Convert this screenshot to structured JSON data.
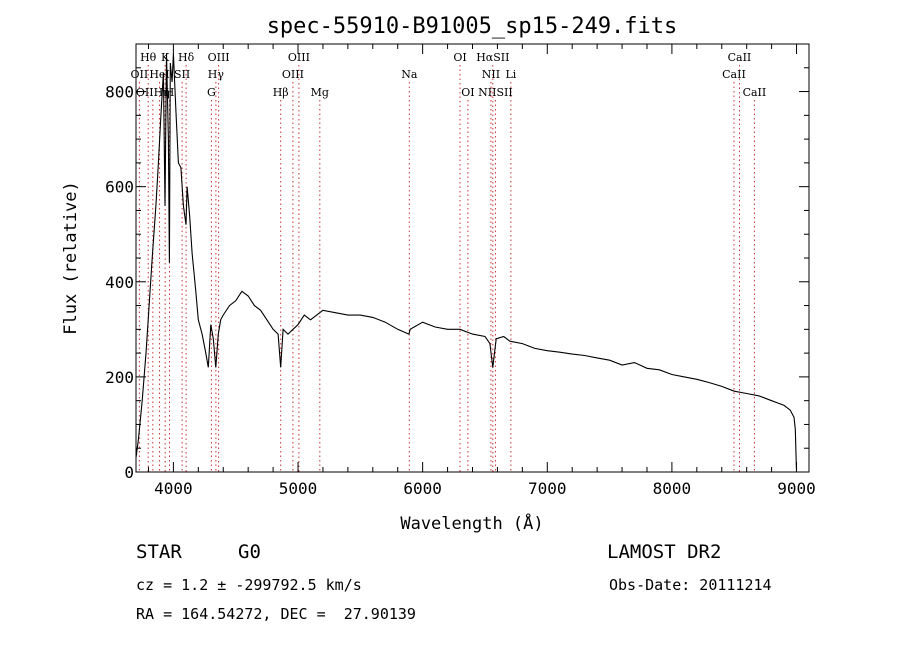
{
  "chart_data": {
    "type": "line",
    "title": "spec-55910-B91005_sp15-249.fits",
    "xlabel": "Wavelength (Å)",
    "ylabel": "Flux (relative)",
    "xlim": [
      3700,
      9100
    ],
    "ylim": [
      0,
      900
    ],
    "x_ticks": [
      4000,
      5000,
      6000,
      7000,
      8000,
      9000
    ],
    "y_ticks": [
      0,
      200,
      400,
      600,
      800
    ],
    "grid": false,
    "series": [
      {
        "color": "#000000",
        "x": [
          3700,
          3720,
          3750,
          3780,
          3800,
          3830,
          3860,
          3880,
          3900,
          3920,
          3933,
          3945,
          3960,
          3968,
          3975,
          3990,
          4000,
          4020,
          4040,
          4060,
          4080,
          4101,
          4110,
          4130,
          4150,
          4180,
          4200,
          4230,
          4260,
          4280,
          4300,
          4320,
          4340,
          4360,
          4380,
          4400,
          4450,
          4500,
          4550,
          4600,
          4650,
          4700,
          4750,
          4800,
          4840,
          4861,
          4880,
          4920,
          4960,
          5000,
          5050,
          5100,
          5150,
          5200,
          5300,
          5400,
          5500,
          5600,
          5700,
          5800,
          5890,
          5900,
          6000,
          6100,
          6200,
          6300,
          6400,
          6500,
          6540,
          6563,
          6590,
          6650,
          6700,
          6800,
          6900,
          7000,
          7100,
          7200,
          7300,
          7400,
          7500,
          7600,
          7700,
          7800,
          7900,
          8000,
          8100,
          8200,
          8300,
          8400,
          8500,
          8600,
          8700,
          8800,
          8850,
          8900,
          8950,
          8980,
          8990,
          9000
        ],
        "y": [
          30,
          70,
          150,
          250,
          330,
          450,
          560,
          650,
          750,
          840,
          560,
          880,
          700,
          440,
          860,
          820,
          880,
          760,
          650,
          640,
          560,
          520,
          600,
          540,
          460,
          380,
          320,
          290,
          250,
          220,
          310,
          280,
          220,
          290,
          320,
          330,
          350,
          360,
          380,
          370,
          350,
          340,
          320,
          300,
          290,
          220,
          300,
          290,
          300,
          310,
          330,
          320,
          330,
          340,
          335,
          330,
          330,
          325,
          315,
          300,
          290,
          300,
          315,
          305,
          300,
          300,
          290,
          285,
          270,
          220,
          280,
          285,
          275,
          270,
          260,
          255,
          252,
          248,
          245,
          240,
          235,
          225,
          230,
          218,
          215,
          205,
          200,
          195,
          188,
          180,
          170,
          165,
          160,
          150,
          145,
          140,
          130,
          115,
          90,
          0
        ]
      }
    ],
    "line_markers": [
      {
        "label": "Hθ",
        "x": 3798,
        "row": 1
      },
      {
        "label": "K",
        "x": 3934,
        "row": 1
      },
      {
        "label": "Hδ",
        "x": 4102,
        "row": 1
      },
      {
        "label": "OIII",
        "x": 4363,
        "row": 1
      },
      {
        "label": "OIII",
        "x": 5007,
        "row": 1
      },
      {
        "label": "OI",
        "x": 6300,
        "row": 1
      },
      {
        "label": "HαSII",
        "x": 6563,
        "row": 1
      },
      {
        "label": "CaII",
        "x": 8542,
        "row": 1
      },
      {
        "label": "OII",
        "x": 3727,
        "row": 2
      },
      {
        "label": "HeI",
        "x": 3889,
        "row": 2
      },
      {
        "label": "SII",
        "x": 4070,
        "row": 2
      },
      {
        "label": "Hγ",
        "x": 4341,
        "row": 2
      },
      {
        "label": "OIII",
        "x": 4959,
        "row": 2
      },
      {
        "label": "Na",
        "x": 5893,
        "row": 2
      },
      {
        "label": "NII",
        "x": 6548,
        "row": 2
      },
      {
        "label": "Li",
        "x": 6708,
        "row": 2
      },
      {
        "label": "CaII",
        "x": 8498,
        "row": 2
      },
      {
        "label": "OIIHη",
        "x": 3835,
        "row": 3
      },
      {
        "label": "H",
        "x": 3969,
        "row": 3
      },
      {
        "label": "G",
        "x": 4305,
        "row": 3
      },
      {
        "label": "Hβ",
        "x": 4861,
        "row": 3
      },
      {
        "label": "Mg",
        "x": 5175,
        "row": 3
      },
      {
        "label": "OI",
        "x": 6363,
        "row": 3
      },
      {
        "label": "NIISII",
        "x": 6584,
        "row": 3
      },
      {
        "label": "CaII",
        "x": 8662,
        "row": 3
      }
    ],
    "marker_color": "#cc3333"
  },
  "info": {
    "class_label": "STAR",
    "subclass": "G0",
    "survey": "LAMOST DR2",
    "cz": "cz = 1.2 ± -299792.5 km/s",
    "obs_date": "Obs-Date: 20111214",
    "coords": "RA = 164.54272, DEC =  27.90139"
  }
}
